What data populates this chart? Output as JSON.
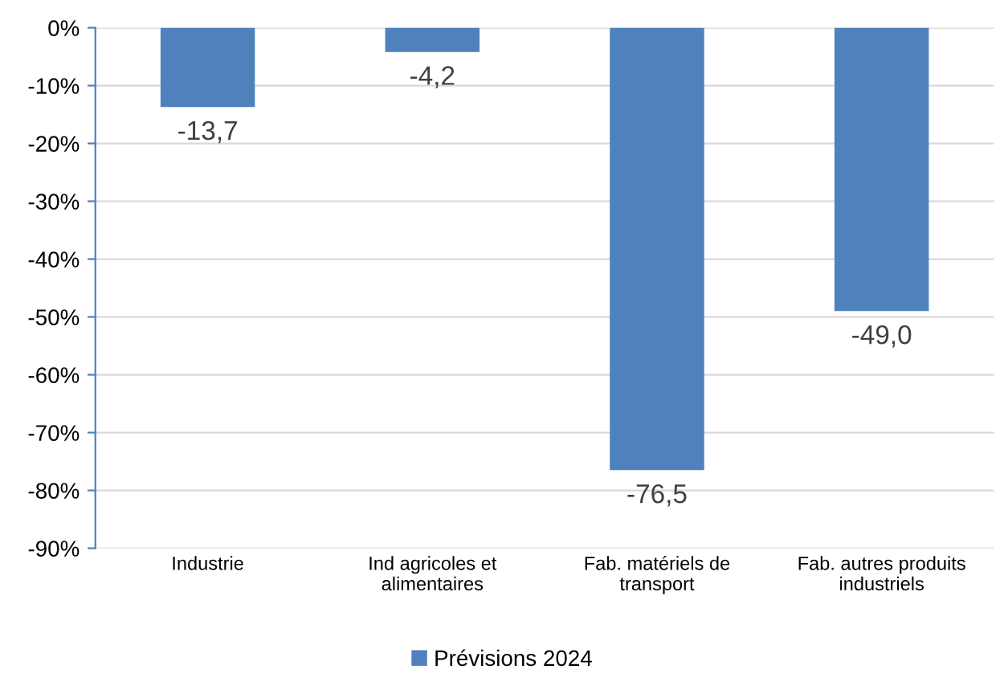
{
  "chart_data": {
    "type": "bar",
    "categories": [
      "Industrie",
      "Ind agricoles et\nalimentaires",
      "Fab. matériels de\ntransport",
      "Fab. autres produits\nindustriels"
    ],
    "series": [
      {
        "name": "Prévisions 2024",
        "color": "#4f81bd",
        "values": [
          -13.7,
          -4.2,
          -76.5,
          -49.0
        ],
        "value_labels": [
          "-13,7",
          "-4,2",
          "-76,5",
          "-49,0"
        ]
      }
    ],
    "ylim": [
      -90,
      0
    ],
    "yticks": [
      {
        "value": -90,
        "label": "-90%"
      },
      {
        "value": -80,
        "label": "-80%"
      },
      {
        "value": -70,
        "label": "-70%"
      },
      {
        "value": -60,
        "label": "-60%"
      },
      {
        "value": -50,
        "label": "-50%"
      },
      {
        "value": -40,
        "label": "-40%"
      },
      {
        "value": -30,
        "label": "-30%"
      },
      {
        "value": -20,
        "label": "-20%"
      },
      {
        "value": -10,
        "label": "-10%"
      },
      {
        "value": 0,
        "label": "0%"
      }
    ],
    "grid": "y",
    "legend": "bottom"
  }
}
